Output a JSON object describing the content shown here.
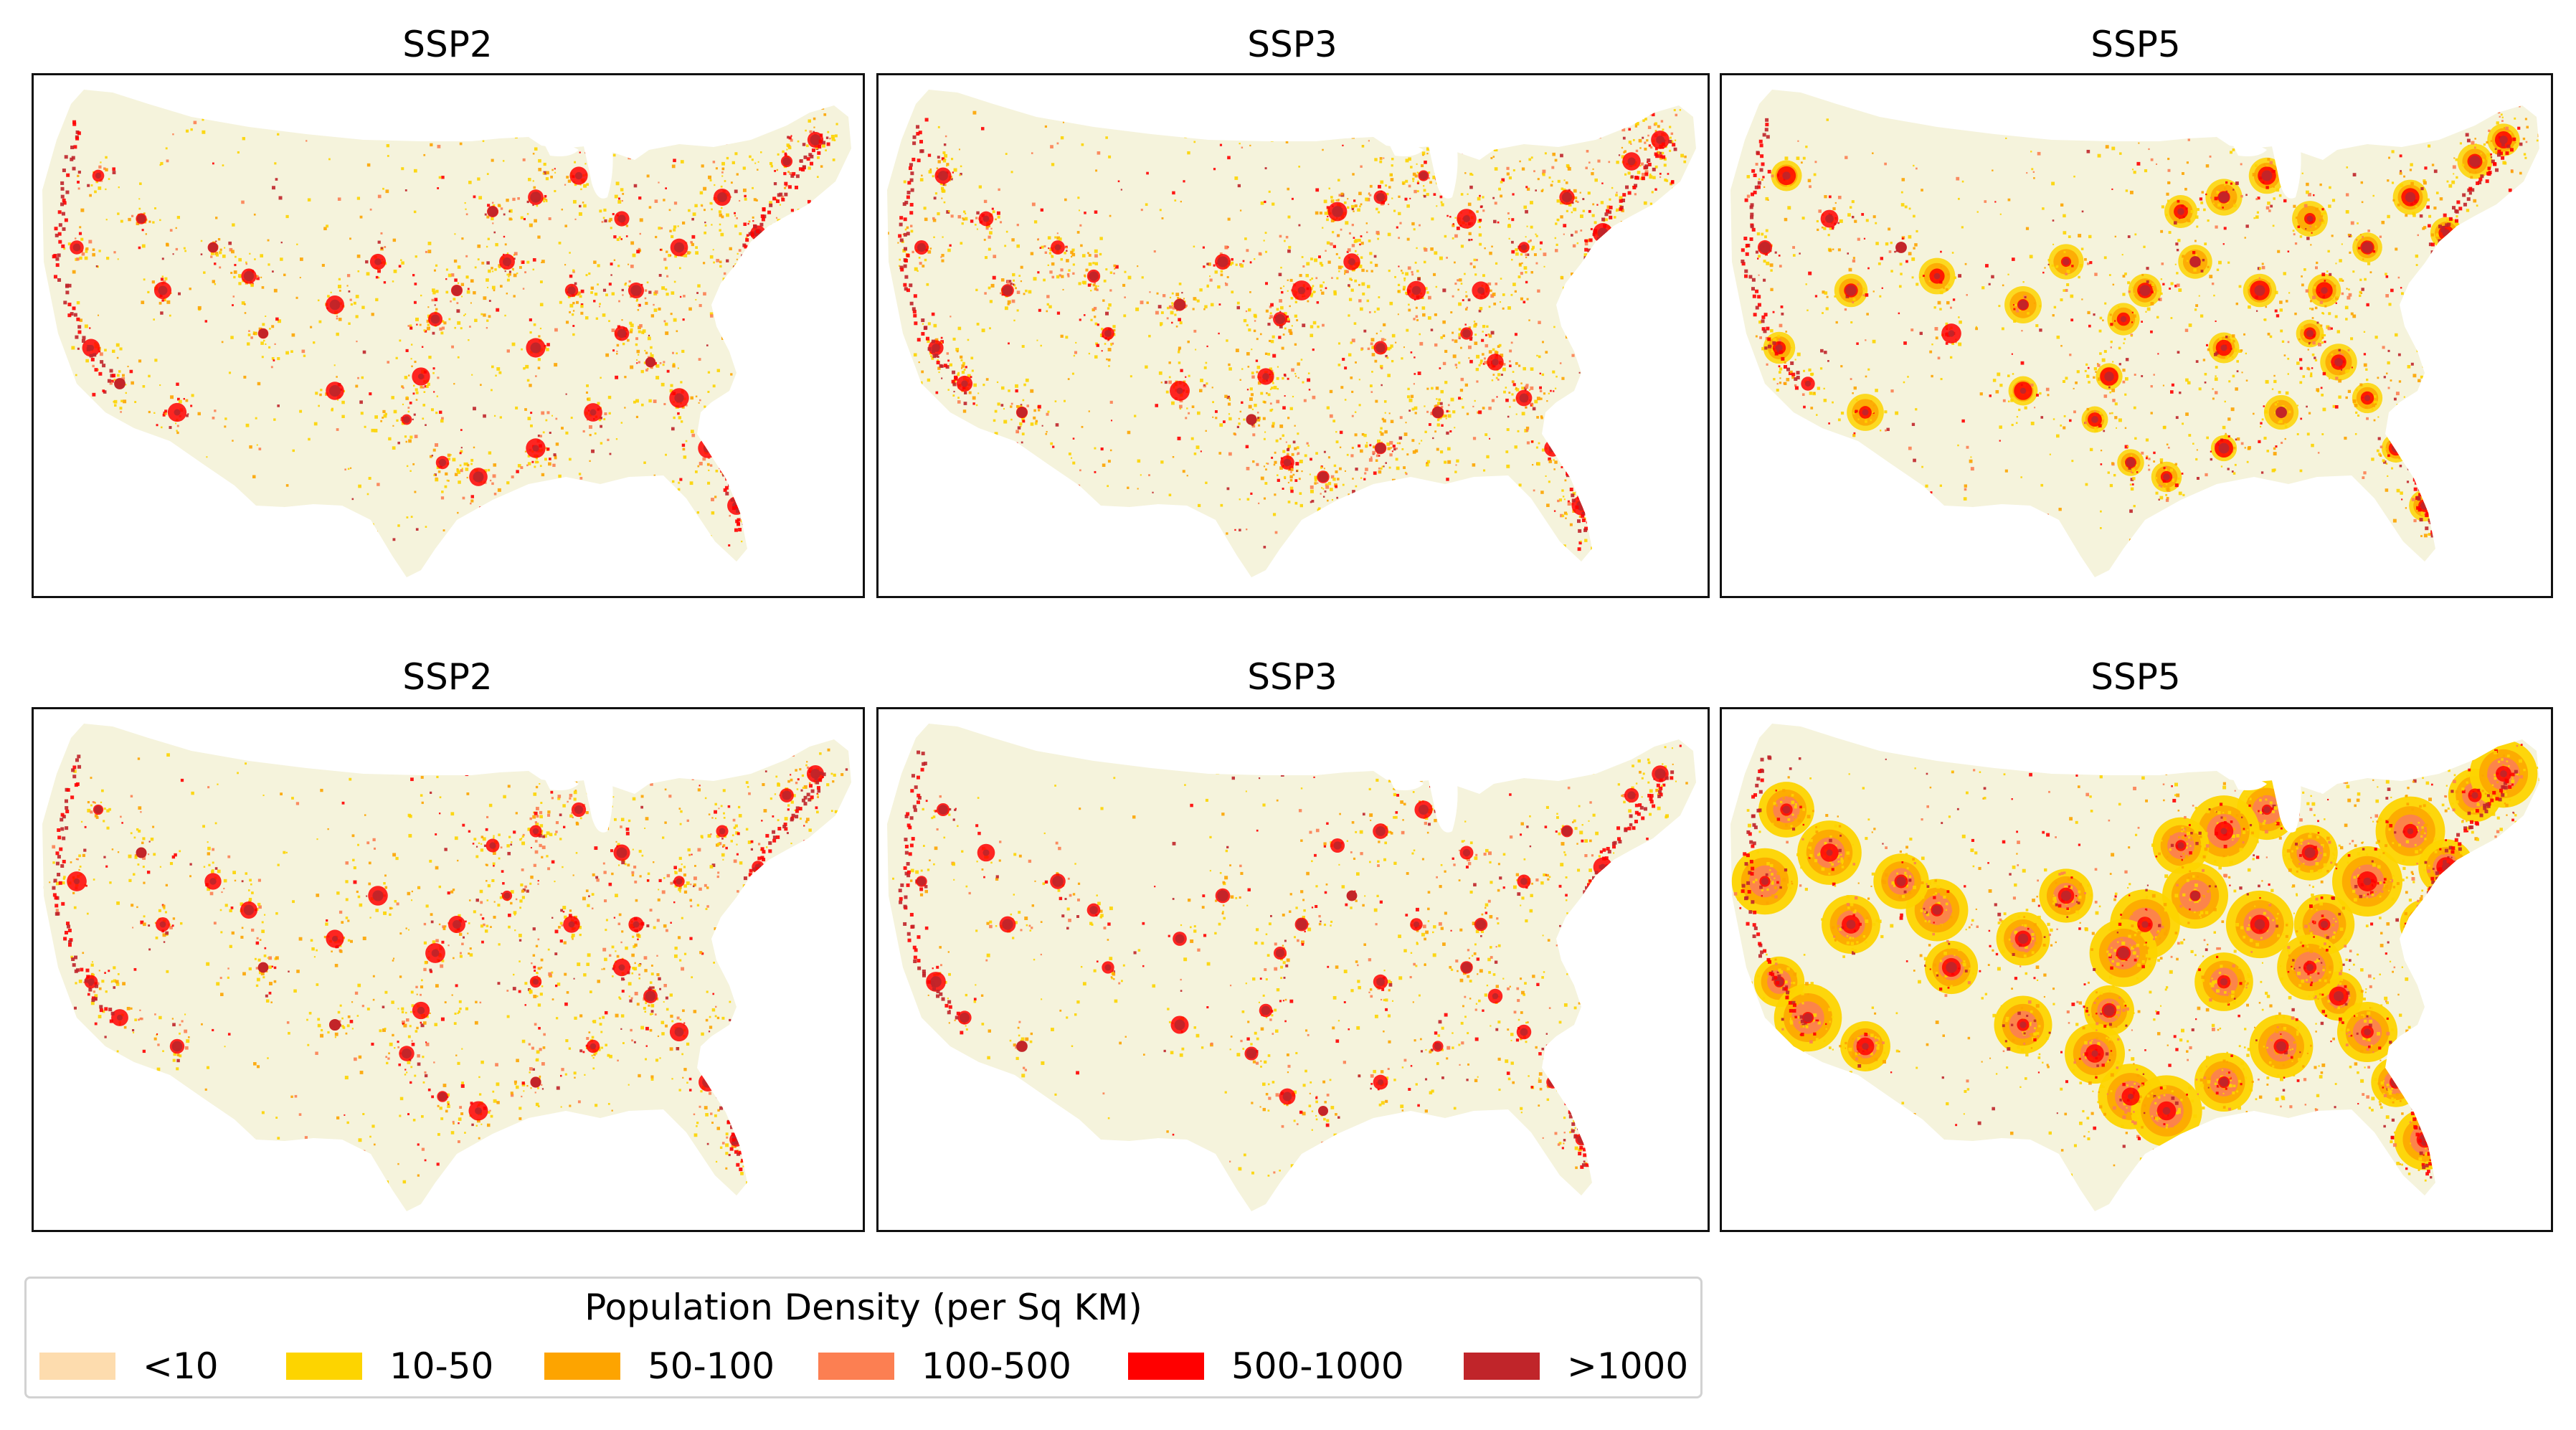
{
  "colors": {
    "background_fill": "#f5f3dc",
    "lt10": "#fddcae",
    "c10_50": "#fdd400",
    "c50_100": "#fda400",
    "c100_500": "#fc7f52",
    "c500_1000": "#ff0000",
    "gt1000": "#c0252a"
  },
  "panels": [
    {
      "title": "SSP2",
      "intensity": "medium",
      "blob_mode": "none"
    },
    {
      "title": "SSP3",
      "intensity": "high",
      "blob_mode": "none"
    },
    {
      "title": "SSP5",
      "intensity": "medium",
      "blob_mode": "small"
    },
    {
      "title": "SSP2",
      "intensity": "medium",
      "blob_mode": "none"
    },
    {
      "title": "SSP3",
      "intensity": "low",
      "blob_mode": "none"
    },
    {
      "title": "SSP5",
      "intensity": "high",
      "blob_mode": "large"
    }
  ],
  "legend": {
    "title": "Population Density (per Sq KM)",
    "items": [
      {
        "label": "<10",
        "color": "#fddcae"
      },
      {
        "label": "10-50",
        "color": "#fdd400"
      },
      {
        "label": "50-100",
        "color": "#fda400"
      },
      {
        "label": "100-500",
        "color": "#fc7f52"
      },
      {
        "label": "500-1000",
        "color": "#ff0000"
      },
      {
        "label": ">1000",
        "color": "#c0252a"
      }
    ]
  }
}
